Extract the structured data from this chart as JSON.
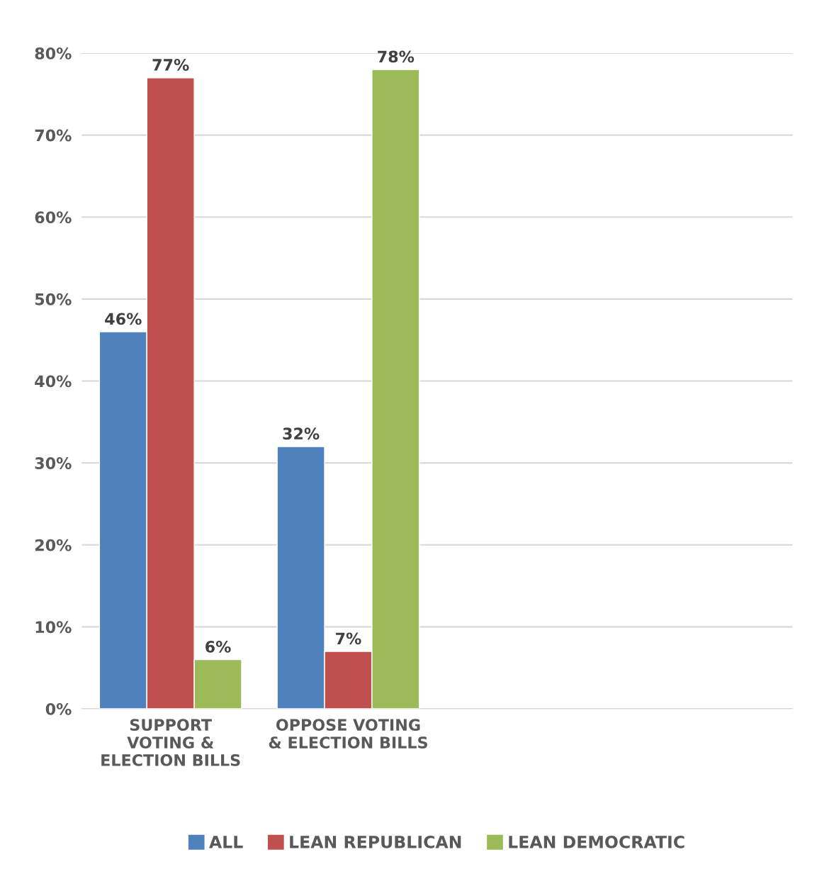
{
  "chart_data": {
    "type": "bar",
    "categories": [
      "SUPPORT\nVOTING &\nELECTION BILLS",
      "OPPOSE VOTING\n& ELECTION BILLS"
    ],
    "series": [
      {
        "name": "ALL",
        "color": "#4f81bd",
        "values": [
          46,
          32
        ],
        "value_labels": [
          "46%",
          "32%"
        ]
      },
      {
        "name": "LEAN REPUBLICAN",
        "color": "#c0504d",
        "values": [
          77,
          7
        ],
        "value_labels": [
          "77%",
          "7%"
        ]
      },
      {
        "name": "LEAN DEMOCRATIC",
        "color": "#9bbb59",
        "values": [
          6,
          78
        ],
        "value_labels": [
          "6%",
          "78%"
        ]
      }
    ],
    "ylim": [
      0,
      80
    ],
    "yticks": [
      {
        "value": 0,
        "label": "0%"
      },
      {
        "value": 10,
        "label": "10%"
      },
      {
        "value": 20,
        "label": "20%"
      },
      {
        "value": 30,
        "label": "30%"
      },
      {
        "value": 40,
        "label": "40%"
      },
      {
        "value": 50,
        "label": "50%"
      },
      {
        "value": 60,
        "label": "60%"
      },
      {
        "value": 70,
        "label": "70%"
      },
      {
        "value": 80,
        "label": "80%"
      }
    ],
    "grid": "y",
    "legend": "bottom"
  }
}
